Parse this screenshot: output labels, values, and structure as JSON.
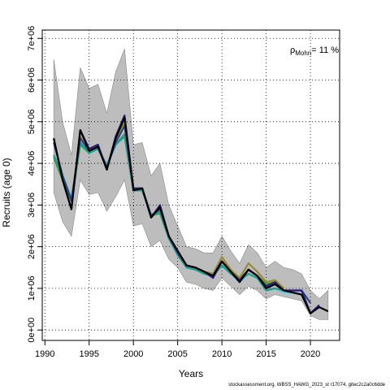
{
  "footer_text": "stockassessment.org, WBSS_HAWG_2023_st r17074, gitec2c2a0c6dde",
  "chart_data": {
    "type": "line",
    "xlabel": "Years",
    "ylabel": "Recruits (age 0)",
    "xlim": [
      1990,
      2022
    ],
    "ylim": [
      0,
      7000000
    ],
    "x_ticks": [
      1990,
      1995,
      2000,
      2005,
      2010,
      2015,
      2020
    ],
    "x_tick_labels": [
      "1990",
      "1995",
      "2000",
      "2005",
      "2010",
      "2015",
      "2020"
    ],
    "y_ticks": [
      0,
      1000000,
      2000000,
      3000000,
      4000000,
      5000000,
      6000000,
      7000000
    ],
    "y_tick_labels": [
      "0e+00",
      "1e+06",
      "2e+06",
      "3e+06",
      "4e+06",
      "5e+06",
      "6e+06",
      "7e+06"
    ],
    "grid": true,
    "annotation": {
      "base": "ρ",
      "sub": "Mohn",
      "rest": "= 11 %"
    },
    "band": {
      "x": [
        1991,
        1992,
        1993,
        1994,
        1995,
        1996,
        1997,
        1998,
        1999,
        2000,
        2001,
        2002,
        2003,
        2004,
        2005,
        2006,
        2007,
        2008,
        2009,
        2010,
        2011,
        2012,
        2013,
        2014,
        2015,
        2016,
        2017,
        2018,
        2019,
        2020,
        2021,
        2022
      ],
      "upper": [
        6500000,
        5000000,
        4200000,
        6300000,
        5800000,
        5900000,
        5200000,
        6200000,
        6750000,
        4450000,
        4500000,
        3700000,
        4000000,
        3000000,
        2500000,
        2000000,
        1950000,
        1850000,
        1850000,
        2250000,
        1900000,
        1600000,
        2050000,
        1850000,
        1500000,
        1650000,
        1500000,
        1450000,
        1350000,
        950000,
        750000,
        950000
      ],
      "lower": [
        3300000,
        2600000,
        2250000,
        3600000,
        3250000,
        3300000,
        2850000,
        3200000,
        3600000,
        2500000,
        2550000,
        2000000,
        2150000,
        1700000,
        1500000,
        1150000,
        1100000,
        1000000,
        950000,
        1250000,
        1050000,
        850000,
        1050000,
        950000,
        750000,
        850000,
        800000,
        750000,
        700000,
        350000,
        250000,
        250000
      ]
    },
    "series": [
      {
        "color": "#000000",
        "x": [
          1991,
          1992,
          1993,
          1994,
          1995,
          1996,
          1997,
          1998,
          1999,
          2000,
          2001,
          2002,
          2003,
          2004,
          2005,
          2006,
          2007,
          2008,
          2009,
          2010,
          2011,
          2012,
          2013,
          2014,
          2015,
          2016,
          2017,
          2018,
          2019,
          2020,
          2021,
          2022
        ],
        "values": [
          4600000,
          3600000,
          2900000,
          4800000,
          4300000,
          4400000,
          3850000,
          4600000,
          5100000,
          3350000,
          3400000,
          2700000,
          2950000,
          2250000,
          1900000,
          1550000,
          1500000,
          1400000,
          1300000,
          1650000,
          1400000,
          1150000,
          1450000,
          1300000,
          1000000,
          1100000,
          950000,
          900000,
          850000,
          400000,
          550000,
          450000
        ]
      },
      {
        "color": "#2b1f7a",
        "x": [
          1991,
          1992,
          1993,
          1994,
          1995,
          1996,
          1997,
          1998,
          1999,
          2000,
          2001,
          2002,
          2003,
          2004,
          2005,
          2006,
          2007,
          2008,
          2009,
          2010,
          2011,
          2012,
          2013,
          2014,
          2015,
          2016,
          2017,
          2018,
          2019,
          2020,
          2021
        ],
        "values": [
          4600000,
          3600000,
          2900000,
          4800000,
          4350000,
          4450000,
          3850000,
          4650000,
          5150000,
          3400000,
          3400000,
          2700000,
          3000000,
          2250000,
          1900000,
          1550000,
          1500000,
          1400000,
          1250000,
          1650000,
          1400000,
          1200000,
          1450000,
          1300000,
          1050000,
          1150000,
          950000,
          950000,
          950000,
          400000,
          600000
        ]
      },
      {
        "color": "#23467e",
        "x": [
          1991,
          1992,
          1993,
          1994,
          1995,
          1996,
          1997,
          1998,
          1999,
          2000,
          2001,
          2002,
          2003,
          2004,
          2005,
          2006,
          2007,
          2008,
          2009,
          2010,
          2011,
          2012,
          2013,
          2014,
          2015,
          2016,
          2017,
          2018,
          2019,
          2020
        ],
        "values": [
          4500000,
          3700000,
          3100000,
          4600000,
          4300000,
          4400000,
          3900000,
          4500000,
          4900000,
          3400000,
          3400000,
          2750000,
          2900000,
          2250000,
          1850000,
          1550000,
          1500000,
          1400000,
          1300000,
          1650000,
          1400000,
          1150000,
          1450000,
          1300000,
          1000000,
          1100000,
          950000,
          950000,
          950000,
          650000
        ]
      },
      {
        "color": "#1f9c8c",
        "x": [
          1991,
          1992,
          1993,
          1994,
          1995,
          1996,
          1997,
          1998,
          1999,
          2000,
          2001,
          2002,
          2003,
          2004,
          2005,
          2006,
          2007,
          2008,
          2009,
          2010,
          2011,
          2012,
          2013,
          2014,
          2015,
          2016,
          2017,
          2018,
          2019
        ],
        "values": [
          4200000,
          3700000,
          3150000,
          4500000,
          4250000,
          4350000,
          3950000,
          4450000,
          4700000,
          3350000,
          3350000,
          2750000,
          2850000,
          2200000,
          1800000,
          1500000,
          1450000,
          1350000,
          1300000,
          1550000,
          1350000,
          1200000,
          1350000,
          1250000,
          950000,
          1000000,
          950000,
          900000,
          850000
        ]
      },
      {
        "color": "#5bc8e8",
        "x": [
          1991,
          1992,
          1993,
          1994,
          1995,
          1996,
          1997,
          1998,
          1999,
          2000,
          2001,
          2002,
          2003,
          2004,
          2005,
          2006,
          2007,
          2008,
          2009,
          2010,
          2011,
          2012,
          2013,
          2014,
          2015,
          2016,
          2017,
          2018
        ],
        "values": [
          4200000,
          3700000,
          3150000,
          4500000,
          4250000,
          4350000,
          3950000,
          4450000,
          4700000,
          3350000,
          3350000,
          2750000,
          2850000,
          2200000,
          1800000,
          1500000,
          1450000,
          1350000,
          1300000,
          1600000,
          1350000,
          1150000,
          1350000,
          1250000,
          950000,
          1000000,
          900000,
          900000
        ]
      },
      {
        "color": "#9a8a2e",
        "x": [
          1991,
          1992,
          1993,
          1994,
          1995,
          1996,
          1997,
          1998,
          1999,
          2000,
          2001,
          2002,
          2003,
          2004,
          2005,
          2006,
          2007,
          2008,
          2009,
          2010,
          2011,
          2012,
          2013,
          2014,
          2015,
          2016,
          2017
        ],
        "values": [
          4500000,
          3700000,
          3100000,
          4650000,
          4300000,
          4400000,
          3900000,
          4600000,
          5000000,
          3400000,
          3400000,
          2700000,
          2900000,
          2250000,
          1900000,
          1550000,
          1500000,
          1400000,
          1350000,
          1750000,
          1450000,
          1250000,
          1600000,
          1400000,
          1150000,
          1200000,
          1000000
        ]
      },
      {
        "color": "#2a9a3a",
        "x": [
          1991,
          1992,
          1993,
          1994,
          1995,
          1996,
          1997,
          1998,
          1999,
          2000,
          2001,
          2002,
          2003,
          2004,
          2005,
          2006,
          2007,
          2008,
          2009,
          2010,
          2011,
          2012,
          2013,
          2014,
          2015,
          2016
        ],
        "values": [
          4150000,
          3600000,
          3100000,
          4450000,
          4250000,
          4350000,
          3950000,
          4450000,
          4650000,
          3350000,
          3350000,
          2750000,
          2800000,
          2200000,
          1800000,
          1550000,
          1500000,
          1400000,
          1350000,
          1650000,
          1400000,
          1200000,
          1450000,
          1300000,
          1100000,
          1150000
        ]
      }
    ]
  }
}
